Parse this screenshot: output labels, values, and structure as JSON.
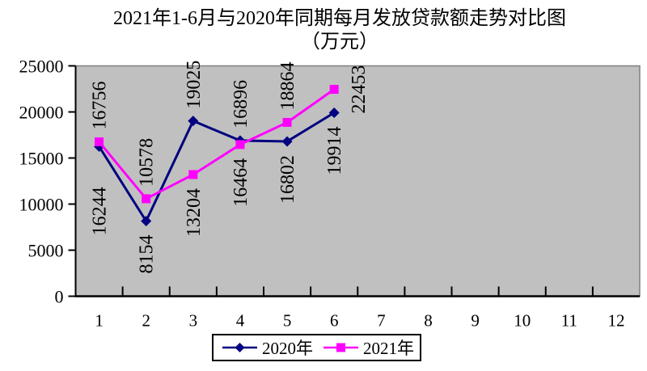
{
  "title": {
    "line1": "2021年1-6月与2020年同期每月发放贷款额走势对比图",
    "line2": "（万元）"
  },
  "chart_data": {
    "type": "line",
    "title": "2021年1-6月与2020年同期每月发放贷款额走势对比图",
    "unit": "万元",
    "x_categories": [
      1,
      2,
      3,
      4,
      5,
      6,
      7,
      8,
      9,
      10,
      11,
      12
    ],
    "y_ticks": [
      0,
      5000,
      10000,
      15000,
      20000,
      25000
    ],
    "ylim": [
      0,
      25000
    ],
    "grid": false,
    "legend_position": "bottom",
    "plot_bg": "#c0c0c0",
    "plot_border": "#808080",
    "axis_color": "#000000",
    "label_color": "#000000",
    "series": [
      {
        "name": "2020年",
        "color": "#000080",
        "marker": "diamond",
        "x": [
          1,
          2,
          3,
          4,
          5,
          6
        ],
        "values": [
          16244,
          8154,
          19025,
          16896,
          16802,
          19914
        ],
        "label_placement": [
          "below-far",
          "below",
          "above",
          "above",
          "below",
          "below"
        ]
      },
      {
        "name": "2021年",
        "color": "#ff00ff",
        "marker": "square",
        "x": [
          1,
          2,
          3,
          4,
          5,
          6
        ],
        "values": [
          16756,
          10578,
          13204,
          16464,
          18864,
          22453
        ],
        "label_placement": [
          "above",
          "above",
          "below",
          "below",
          "above",
          "right"
        ]
      }
    ]
  }
}
